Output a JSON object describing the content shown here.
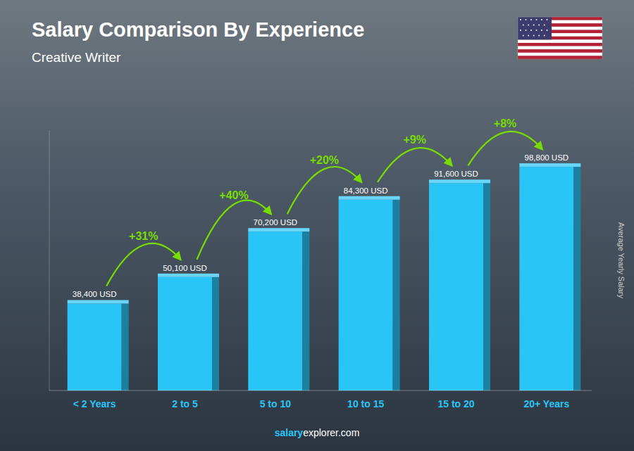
{
  "chart_data": {
    "type": "bar",
    "title": "Salary Comparison By Experience",
    "subtitle": "Creative Writer",
    "ylabel": "Average Yearly Salary",
    "footer": [
      "salary",
      "explorer.com"
    ],
    "categories": [
      "< 2 Years",
      "2 to 5",
      "5 to 10",
      "10 to 15",
      "15 to 20",
      "20+ Years"
    ],
    "values": [
      38400,
      50100,
      70200,
      84300,
      91600,
      98800
    ],
    "value_labels": [
      "38,400 USD",
      "50,100 USD",
      "70,200 USD",
      "84,300 USD",
      "91,600 USD",
      "98,800 USD"
    ],
    "annotations": [
      "+31%",
      "+40%",
      "+20%",
      "+9%",
      "+8%"
    ],
    "color": "#29C5F6",
    "ylim": [
      0,
      115000
    ],
    "data_labels": true,
    "tick_labels": "x",
    "grid": false
  }
}
